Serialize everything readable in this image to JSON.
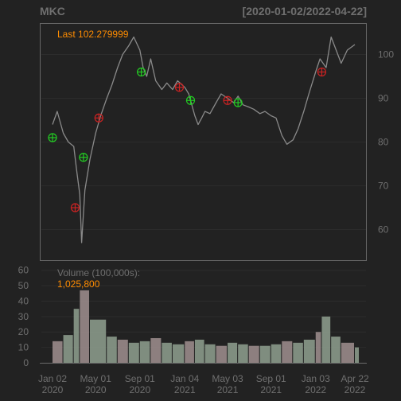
{
  "header": {
    "symbol": "MKC",
    "date_range": "[2020-01-02/2022-04-22]"
  },
  "price_panel": {
    "last_label": "Last 102.279999",
    "label_color": "#ff8c00"
  },
  "volume_panel": {
    "title": "Volume (100,000s):",
    "last_value": "1,025,800",
    "title_color": "#6f6f6f",
    "value_color": "#ff8c00"
  },
  "colors": {
    "background": "#222222",
    "border": "#666666",
    "grid": "#2c2c2c",
    "text": "#6f6f6f",
    "price": "#8a8a8a",
    "buy": "#22cc22",
    "sell": "#cc2222",
    "volume_up": "#8fa08f",
    "volume_down": "#a08f8f"
  },
  "chart_data": [
    {
      "type": "line",
      "panel": "price",
      "y_ticks": [
        60,
        70,
        80,
        90,
        100
      ],
      "ylim": [
        53,
        107
      ],
      "grid": true,
      "series": [
        {
          "x": [
            "2020-01-02",
            "2020-01-15",
            "2020-02-01",
            "2020-02-15",
            "2020-03-01",
            "2020-03-10",
            "2020-03-18",
            "2020-03-23",
            "2020-04-01",
            "2020-04-15",
            "2020-05-01",
            "2020-05-15",
            "2020-06-01",
            "2020-06-15",
            "2020-07-01",
            "2020-07-15",
            "2020-08-01",
            "2020-08-15",
            "2020-09-01",
            "2020-09-10",
            "2020-09-20",
            "2020-10-01",
            "2020-10-15",
            "2020-11-01",
            "2020-11-15",
            "2020-12-01",
            "2020-12-15",
            "2021-01-04",
            "2021-01-15",
            "2021-02-01",
            "2021-02-10",
            "2021-02-20",
            "2021-03-01",
            "2021-03-15",
            "2021-04-01",
            "2021-04-15",
            "2021-05-03",
            "2021-05-20",
            "2021-06-01",
            "2021-06-15",
            "2021-07-01",
            "2021-07-15",
            "2021-08-01",
            "2021-08-15",
            "2021-09-01",
            "2021-09-15",
            "2021-10-01",
            "2021-10-15",
            "2021-11-01",
            "2021-11-15",
            "2021-12-01",
            "2021-12-15",
            "2022-01-03",
            "2022-01-15",
            "2022-02-01",
            "2022-02-15",
            "2022-03-01",
            "2022-03-15",
            "2022-04-01",
            "2022-04-22"
          ],
          "y": [
            84.0,
            87.0,
            82.0,
            80.0,
            79.0,
            73.0,
            68.0,
            57.0,
            69.0,
            76.0,
            82.0,
            86.0,
            90.0,
            93.0,
            97.0,
            100.0,
            102.0,
            104.0,
            101.0,
            97.0,
            95.0,
            99.0,
            94.0,
            92.0,
            93.5,
            92.0,
            94.0,
            92.5,
            91.0,
            86.0,
            84.0,
            85.5,
            87.0,
            86.5,
            89.0,
            91.0,
            90.0,
            89.0,
            90.5,
            88.5,
            88.0,
            87.5,
            86.5,
            87.0,
            86.0,
            85.5,
            81.5,
            79.5,
            80.5,
            83.0,
            87.0,
            91.0,
            96.0,
            99.0,
            97.0,
            104.0,
            101.0,
            98.0,
            101.0,
            102.28
          ]
        }
      ],
      "buy_signals": [
        {
          "x": "2020-01-02",
          "y": 81.0
        },
        {
          "x": "2020-03-28",
          "y": 76.5
        },
        {
          "x": "2020-09-05",
          "y": 96.0
        },
        {
          "x": "2021-01-20",
          "y": 89.5
        },
        {
          "x": "2021-06-01",
          "y": 89.0
        }
      ],
      "sell_signals": [
        {
          "x": "2020-03-05",
          "y": 65.0
        },
        {
          "x": "2020-05-10",
          "y": 85.5
        },
        {
          "x": "2020-12-20",
          "y": 92.5
        },
        {
          "x": "2021-05-03",
          "y": 89.5
        },
        {
          "x": "2022-01-20",
          "y": 96.0
        }
      ]
    },
    {
      "type": "bar",
      "panel": "volume",
      "y_ticks": [
        0,
        10,
        20,
        30,
        40,
        50,
        60
      ],
      "ylim": [
        0,
        65
      ],
      "x_ticks": [
        {
          "date": "2020-01-02",
          "label": "Jan 02\n2020"
        },
        {
          "date": "2020-05-01",
          "label": "May 01\n2020"
        },
        {
          "date": "2020-09-01",
          "label": "Sep 01\n2020"
        },
        {
          "date": "2021-01-04",
          "label": "Jan 04\n2021"
        },
        {
          "date": "2021-05-03",
          "label": "May 03\n2021"
        },
        {
          "date": "2021-09-01",
          "label": "Sep 01\n2021"
        },
        {
          "date": "2022-01-03",
          "label": "Jan 03\n2022"
        },
        {
          "date": "2022-04-22",
          "label": "Apr 22\n2022"
        }
      ],
      "series": [
        {
          "x": [
            "2020-01-02",
            "2020-02-01",
            "2020-03-01",
            "2020-03-18",
            "2020-04-15",
            "2020-06-01",
            "2020-07-01",
            "2020-08-01",
            "2020-09-01",
            "2020-10-01",
            "2020-11-01",
            "2020-12-01",
            "2021-01-04",
            "2021-02-01",
            "2021-03-01",
            "2021-04-01",
            "2021-05-03",
            "2021-06-01",
            "2021-07-01",
            "2021-08-01",
            "2021-09-01",
            "2021-10-01",
            "2021-11-01",
            "2021-12-01",
            "2022-01-03",
            "2022-01-20",
            "2022-02-15",
            "2022-03-15",
            "2022-04-22"
          ],
          "values": [
            14,
            18,
            35,
            47,
            28,
            17,
            15,
            13,
            14,
            16,
            13,
            12,
            14,
            15,
            12,
            11,
            13,
            12,
            11,
            11,
            12,
            14,
            13,
            15,
            20,
            30,
            17,
            13,
            10
          ]
        }
      ]
    }
  ]
}
